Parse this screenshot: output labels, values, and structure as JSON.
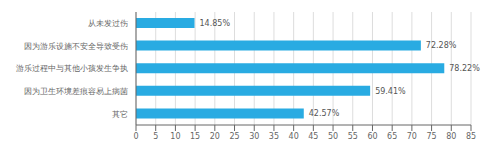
{
  "chart_data": {
    "type": "bar",
    "orientation": "horizontal",
    "categories": [
      "从未发过伤",
      "因为游乐设施不安全导致受伤",
      "游乐过程中与其他小孩发生争执",
      "因为卫生环境差痕容易上病菌",
      "其它"
    ],
    "values": [
      14.85,
      72.28,
      78.22,
      59.41,
      42.57
    ],
    "value_labels": [
      "14.85%",
      "72.28%",
      "78.22%",
      "59.41%",
      "42.57%"
    ],
    "data_labels": true,
    "color": "#29ABE2",
    "xlim": [
      0,
      85
    ],
    "xticks": [
      0,
      5,
      10,
      15,
      20,
      25,
      30,
      35,
      40,
      45,
      50,
      55,
      60,
      65,
      70,
      75,
      80,
      85
    ],
    "grid": true
  }
}
